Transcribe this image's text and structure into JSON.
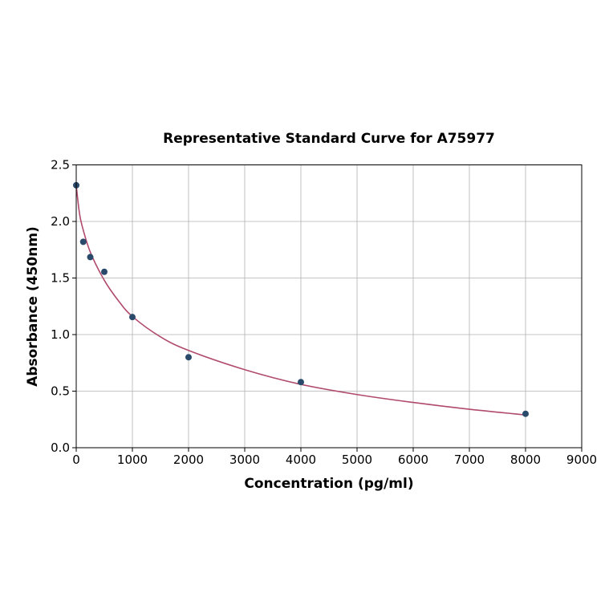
{
  "chart_data": {
    "type": "scatter",
    "title": "Representative Standard Curve for A75977",
    "xlabel": "Concentration (pg/ml)",
    "ylabel": "Absorbance (450nm)",
    "xlim": [
      0,
      9000
    ],
    "ylim": [
      0,
      2.5
    ],
    "xticks": [
      "0",
      "1000",
      "2000",
      "3000",
      "4000",
      "5000",
      "6000",
      "7000",
      "8000",
      "9000"
    ],
    "yticks": [
      "0.0",
      "0.5",
      "1.0",
      "1.5",
      "2.0",
      "2.5"
    ],
    "grid": true,
    "points": {
      "x": [
        0,
        125,
        250,
        500,
        1000,
        2000,
        4000,
        8000
      ],
      "y": [
        2.32,
        1.82,
        1.685,
        1.555,
        1.155,
        0.8,
        0.58,
        0.3
      ]
    },
    "fit_curve": {
      "x": [
        0,
        50,
        100,
        250,
        500,
        750,
        1000,
        1500,
        2000,
        3000,
        4000,
        5000,
        6000,
        7000,
        8000
      ],
      "y": [
        2.32,
        2.1,
        1.97,
        1.73,
        1.48,
        1.3,
        1.16,
        0.98,
        0.86,
        0.69,
        0.56,
        0.47,
        0.4,
        0.34,
        0.29
      ]
    },
    "colors": {
      "points": "#2a4a6b",
      "curve": "#b04a6e"
    }
  }
}
